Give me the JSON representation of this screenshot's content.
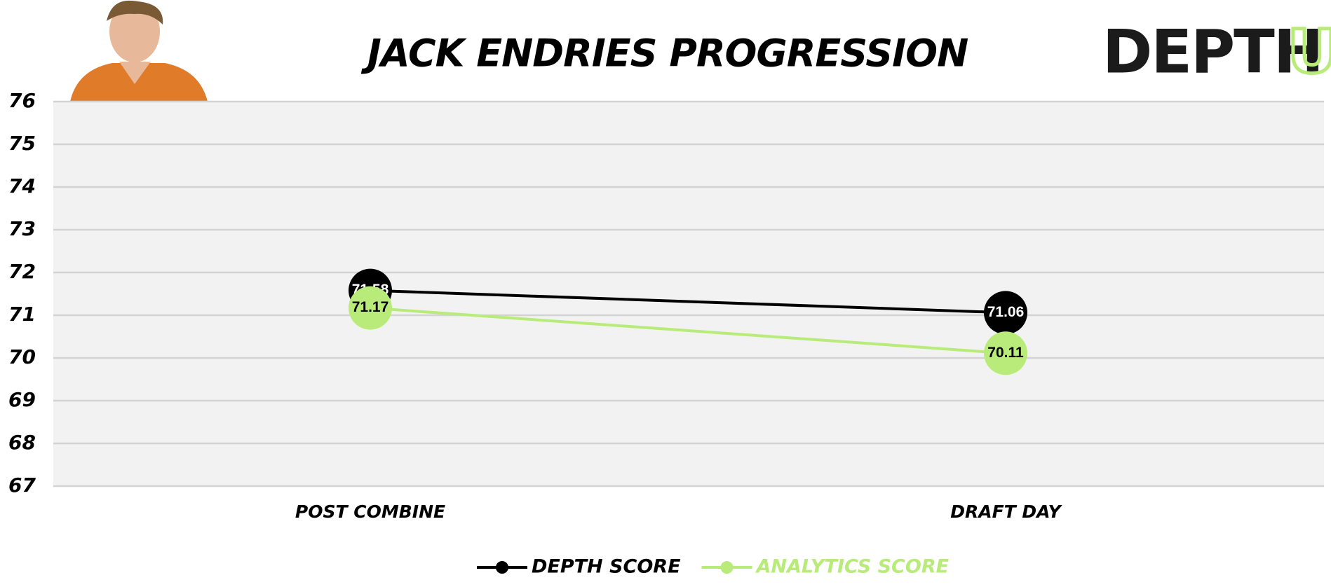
{
  "chart_data": {
    "type": "line",
    "title": "JACK ENDRIES PROGRESSION",
    "logo": {
      "main": "DEPTH",
      "accent": "U"
    },
    "categories": [
      "POST COMBINE",
      "DRAFT DAY"
    ],
    "series": [
      {
        "name": "DEPTH SCORE",
        "color": "#000000",
        "values": [
          71.58,
          71.06
        ]
      },
      {
        "name": "ANALYTICS SCORE",
        "color": "#b9eb7a",
        "values": [
          71.17,
          70.11
        ]
      }
    ],
    "ylim": [
      67,
      76
    ],
    "yticks": [
      67,
      68,
      69,
      70,
      71,
      72,
      73,
      74,
      75,
      76
    ],
    "grid": true
  }
}
